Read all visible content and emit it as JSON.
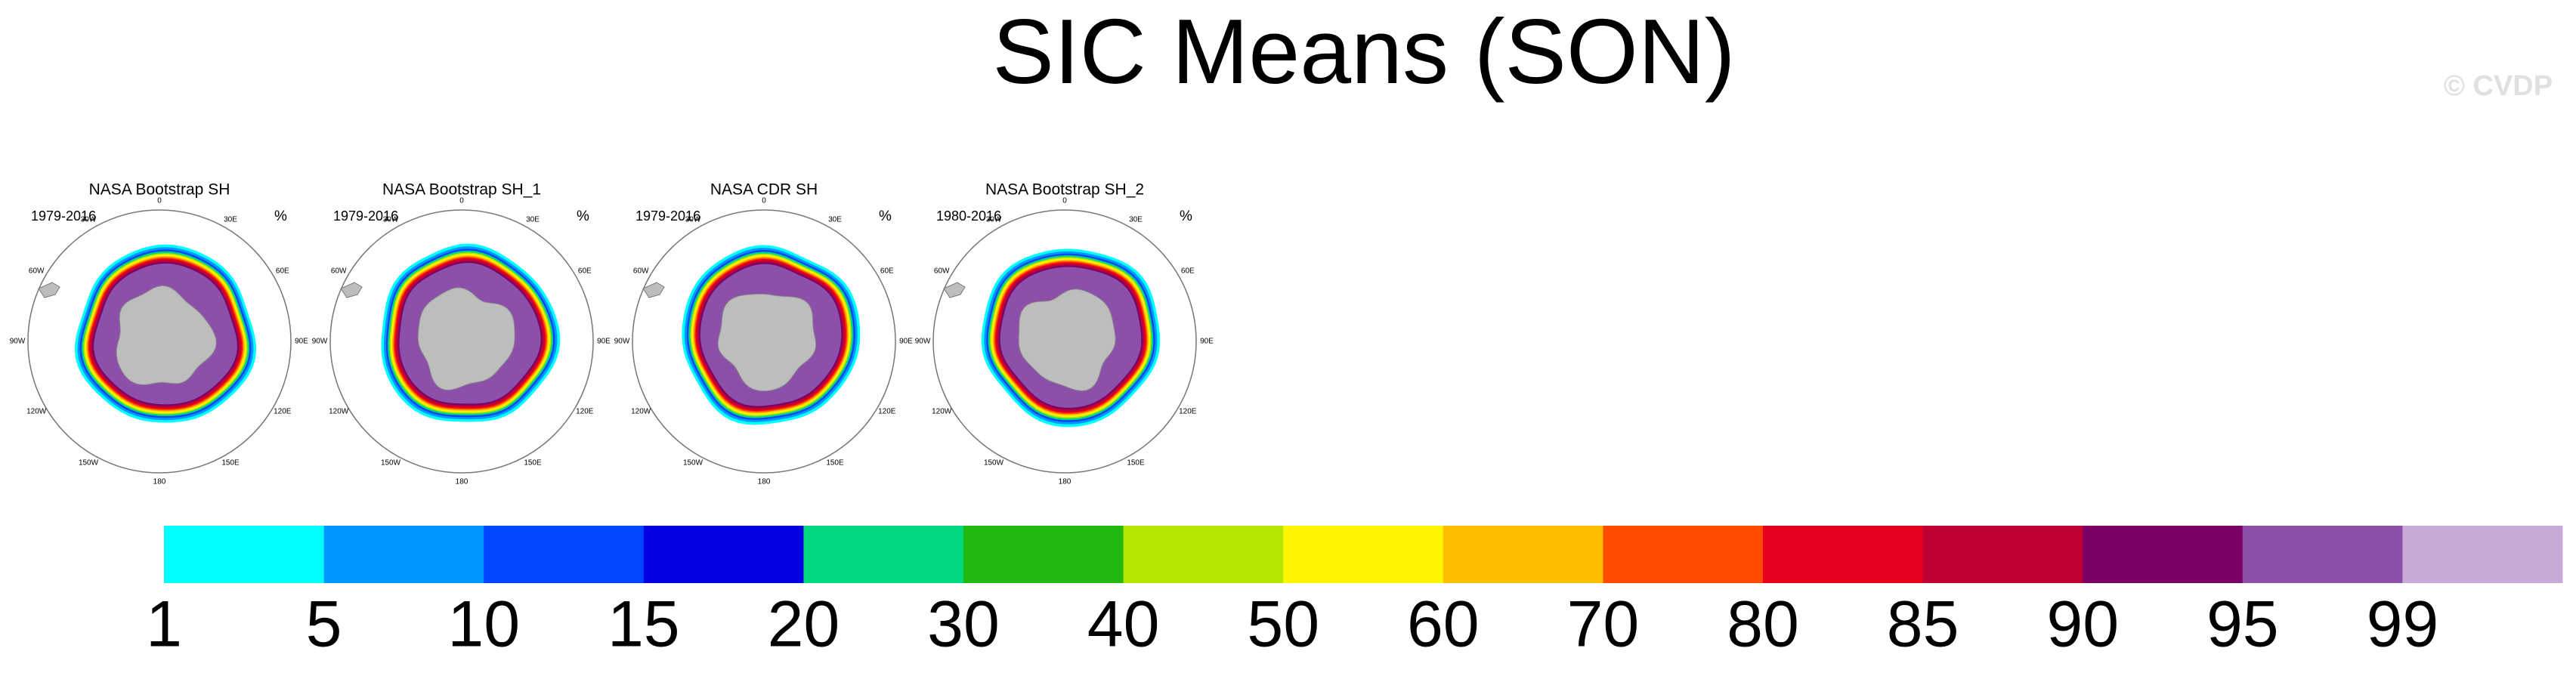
{
  "title": "SIC Means (SON)",
  "watermark": "© CVDP",
  "panels": [
    {
      "title": "NASA Bootstrap SH",
      "period": "1979-2016",
      "unit": "%"
    },
    {
      "title": "NASA Bootstrap SH_1",
      "period": "1979-2016",
      "unit": "%"
    },
    {
      "title": "NASA CDR SH",
      "period": "1979-2016",
      "unit": "%"
    },
    {
      "title": "NASA Bootstrap SH_2",
      "period": "1980-2016",
      "unit": "%"
    }
  ],
  "lon_labels": [
    "0",
    "30E",
    "60E",
    "90E",
    "120E",
    "150E",
    "180",
    "150W",
    "120W",
    "90W",
    "60W",
    "30W"
  ],
  "colorbar": {
    "levels": [
      1,
      5,
      10,
      15,
      20,
      30,
      40,
      50,
      60,
      70,
      80,
      85,
      90,
      95,
      99
    ],
    "colors": [
      "#00ffff",
      "#0096ff",
      "#0046ff",
      "#0000e0",
      "#00d77f",
      "#22b80d",
      "#b4e600",
      "#fff500",
      "#ffbe00",
      "#ff4b00",
      "#e6001e",
      "#be0032",
      "#7d0064",
      "#8c50aa",
      "#c8aad8"
    ]
  }
}
